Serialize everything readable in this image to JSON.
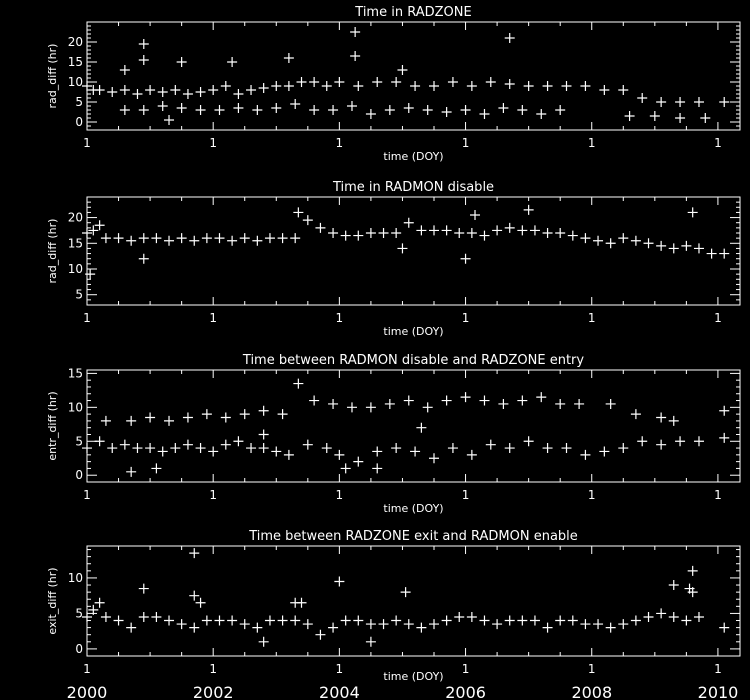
{
  "colors": {
    "background": "#000000",
    "foreground": "#ffffff"
  },
  "year_labels": [
    "2000",
    "2002",
    "2004",
    "2006",
    "2008",
    "2010"
  ],
  "chart_data": [
    {
      "type": "scatter",
      "title": "Time in RADZONE",
      "xlabel": "time (DOY)",
      "ylabel": "rad_diff (hr)",
      "xlim": [
        2000,
        2010.35
      ],
      "ylim": [
        -2,
        25
      ],
      "xticklabels": [
        "1",
        "1",
        "1",
        "1",
        "1",
        "1"
      ],
      "yticks": [
        0,
        5,
        10,
        15,
        20
      ],
      "marker": "plus",
      "points": [
        [
          2000.0,
          9
        ],
        [
          2000.1,
          8
        ],
        [
          2000.2,
          8
        ],
        [
          2000.4,
          7.5
        ],
        [
          2000.6,
          8
        ],
        [
          2000.8,
          7
        ],
        [
          2001.0,
          8
        ],
        [
          2001.2,
          7.5
        ],
        [
          2001.4,
          8
        ],
        [
          2001.6,
          7
        ],
        [
          2001.8,
          7.5
        ],
        [
          2002.0,
          8
        ],
        [
          2002.2,
          9
        ],
        [
          2002.4,
          7
        ],
        [
          2002.6,
          8
        ],
        [
          2002.8,
          8.5
        ],
        [
          2003.0,
          9
        ],
        [
          2003.2,
          9
        ],
        [
          2003.4,
          10
        ],
        [
          2003.6,
          10
        ],
        [
          2003.8,
          9
        ],
        [
          2004.0,
          10
        ],
        [
          2004.3,
          9
        ],
        [
          2004.6,
          10
        ],
        [
          2004.9,
          10
        ],
        [
          2005.2,
          9
        ],
        [
          2005.5,
          9
        ],
        [
          2005.8,
          10
        ],
        [
          2006.1,
          9
        ],
        [
          2006.4,
          10
        ],
        [
          2006.7,
          9.5
        ],
        [
          2007.0,
          9
        ],
        [
          2007.3,
          9
        ],
        [
          2007.6,
          9
        ],
        [
          2007.9,
          9
        ],
        [
          2008.2,
          8
        ],
        [
          2008.5,
          8
        ],
        [
          2008.8,
          6
        ],
        [
          2009.1,
          5
        ],
        [
          2009.4,
          5
        ],
        [
          2009.7,
          5
        ],
        [
          2010.1,
          5
        ],
        [
          2000.6,
          3
        ],
        [
          2000.9,
          3
        ],
        [
          2001.2,
          4
        ],
        [
          2001.5,
          3.5
        ],
        [
          2001.8,
          3
        ],
        [
          2002.1,
          3
        ],
        [
          2002.4,
          3.5
        ],
        [
          2002.7,
          3
        ],
        [
          2003.0,
          3.5
        ],
        [
          2003.3,
          4.5
        ],
        [
          2003.6,
          3
        ],
        [
          2003.9,
          3
        ],
        [
          2004.2,
          4
        ],
        [
          2004.5,
          2
        ],
        [
          2004.8,
          3
        ],
        [
          2005.1,
          3.5
        ],
        [
          2005.4,
          3
        ],
        [
          2005.7,
          2.5
        ],
        [
          2006.0,
          3
        ],
        [
          2006.3,
          2
        ],
        [
          2006.6,
          3.5
        ],
        [
          2006.9,
          3
        ],
        [
          2007.2,
          2
        ],
        [
          2007.5,
          3
        ],
        [
          2008.6,
          1.5
        ],
        [
          2009.0,
          1.5
        ],
        [
          2009.4,
          1
        ],
        [
          2009.8,
          1
        ],
        [
          2000.9,
          19.5
        ],
        [
          2000.9,
          15.5
        ],
        [
          2001.5,
          15
        ],
        [
          2002.3,
          15
        ],
        [
          2003.2,
          16
        ],
        [
          2004.25,
          22.5
        ],
        [
          2004.25,
          16.5
        ],
        [
          2006.7,
          21
        ],
        [
          2000.6,
          13
        ],
        [
          2005.0,
          13
        ],
        [
          2001.3,
          0.5
        ]
      ]
    },
    {
      "type": "scatter",
      "title": "Time in RADMON disable",
      "xlabel": "time (DOY)",
      "ylabel": "rad_diff (hr)",
      "xlim": [
        2000,
        2010.35
      ],
      "ylim": [
        3,
        24
      ],
      "xticklabels": [
        "1",
        "1",
        "1",
        "1",
        "1",
        "1"
      ],
      "yticks": [
        5,
        10,
        15,
        20
      ],
      "marker": "plus",
      "points": [
        [
          2000.0,
          17
        ],
        [
          2000.1,
          17.5
        ],
        [
          2000.3,
          16
        ],
        [
          2000.5,
          16
        ],
        [
          2000.7,
          15.5
        ],
        [
          2000.9,
          16
        ],
        [
          2001.1,
          16
        ],
        [
          2001.3,
          15.5
        ],
        [
          2001.5,
          16
        ],
        [
          2001.7,
          15.5
        ],
        [
          2001.9,
          16
        ],
        [
          2002.1,
          16
        ],
        [
          2002.3,
          15.5
        ],
        [
          2002.5,
          16
        ],
        [
          2002.7,
          15.5
        ],
        [
          2002.9,
          16
        ],
        [
          2003.1,
          16
        ],
        [
          2003.3,
          16
        ],
        [
          2003.35,
          21
        ],
        [
          2003.5,
          19.5
        ],
        [
          2003.7,
          18
        ],
        [
          2003.9,
          17
        ],
        [
          2004.1,
          16.5
        ],
        [
          2004.3,
          16.5
        ],
        [
          2004.5,
          17
        ],
        [
          2004.7,
          17
        ],
        [
          2004.9,
          17
        ],
        [
          2005.1,
          19
        ],
        [
          2005.3,
          17.5
        ],
        [
          2005.5,
          17.5
        ],
        [
          2005.7,
          17.5
        ],
        [
          2005.9,
          17
        ],
        [
          2006.1,
          17
        ],
        [
          2006.3,
          16.5
        ],
        [
          2006.5,
          17.5
        ],
        [
          2006.7,
          18
        ],
        [
          2006.9,
          17.5
        ],
        [
          2007.1,
          17.5
        ],
        [
          2007.3,
          17
        ],
        [
          2007.5,
          17
        ],
        [
          2007.7,
          16.5
        ],
        [
          2007.9,
          16
        ],
        [
          2008.1,
          15.5
        ],
        [
          2008.3,
          15
        ],
        [
          2008.5,
          16
        ],
        [
          2008.7,
          15.5
        ],
        [
          2008.9,
          15
        ],
        [
          2009.1,
          14.5
        ],
        [
          2009.3,
          14
        ],
        [
          2009.5,
          14.5
        ],
        [
          2009.7,
          14
        ],
        [
          2009.9,
          13
        ],
        [
          2010.1,
          13
        ],
        [
          2000.05,
          9
        ],
        [
          2000.9,
          12
        ],
        [
          2005.0,
          14
        ],
        [
          2006.0,
          12
        ],
        [
          2006.15,
          20.5
        ],
        [
          2007.0,
          21.5
        ],
        [
          2009.6,
          21
        ],
        [
          2000.2,
          18.5
        ]
      ]
    },
    {
      "type": "scatter",
      "title": "Time between RADMON disable and RADZONE entry",
      "xlabel": "time (DOY)",
      "ylabel": "entr_diff (hr)",
      "xlim": [
        2000,
        2010.35
      ],
      "ylim": [
        -1,
        15.5
      ],
      "xticklabels": [
        "1",
        "1",
        "1",
        "1",
        "1",
        "1"
      ],
      "yticks": [
        0,
        5,
        10,
        15
      ],
      "marker": "plus",
      "points": [
        [
          2000.0,
          4
        ],
        [
          2000.2,
          5
        ],
        [
          2000.4,
          4
        ],
        [
          2000.6,
          4.5
        ],
        [
          2000.8,
          4
        ],
        [
          2001.0,
          4
        ],
        [
          2001.2,
          3.5
        ],
        [
          2001.4,
          4
        ],
        [
          2001.6,
          4.5
        ],
        [
          2001.8,
          4
        ],
        [
          2002.0,
          3.5
        ],
        [
          2002.2,
          4.5
        ],
        [
          2002.4,
          5
        ],
        [
          2002.6,
          4
        ],
        [
          2002.8,
          4
        ],
        [
          2003.0,
          3.5
        ],
        [
          2003.2,
          3
        ],
        [
          2003.5,
          4.5
        ],
        [
          2003.8,
          4
        ],
        [
          2004.0,
          3
        ],
        [
          2004.3,
          2
        ],
        [
          2004.6,
          3.5
        ],
        [
          2004.9,
          4
        ],
        [
          2005.2,
          3.5
        ],
        [
          2005.5,
          2.5
        ],
        [
          2005.8,
          4
        ],
        [
          2006.1,
          3
        ],
        [
          2006.4,
          4.5
        ],
        [
          2006.7,
          4
        ],
        [
          2007.0,
          5
        ],
        [
          2007.3,
          4
        ],
        [
          2007.6,
          4
        ],
        [
          2007.9,
          3
        ],
        [
          2008.2,
          3.5
        ],
        [
          2008.5,
          4
        ],
        [
          2008.8,
          5
        ],
        [
          2009.1,
          4.5
        ],
        [
          2009.4,
          5
        ],
        [
          2009.7,
          5
        ],
        [
          2010.1,
          5.5
        ],
        [
          2000.3,
          8
        ],
        [
          2000.7,
          8
        ],
        [
          2001.0,
          8.5
        ],
        [
          2001.3,
          8
        ],
        [
          2001.6,
          8.5
        ],
        [
          2001.9,
          9
        ],
        [
          2002.2,
          8.5
        ],
        [
          2002.5,
          9
        ],
        [
          2002.8,
          9.5
        ],
        [
          2003.1,
          9
        ],
        [
          2003.35,
          13.5
        ],
        [
          2003.6,
          11
        ],
        [
          2003.9,
          10.5
        ],
        [
          2004.2,
          10
        ],
        [
          2004.5,
          10
        ],
        [
          2004.8,
          10.5
        ],
        [
          2005.1,
          11
        ],
        [
          2005.4,
          10
        ],
        [
          2005.7,
          11
        ],
        [
          2006.0,
          11.5
        ],
        [
          2006.3,
          11
        ],
        [
          2006.6,
          10.5
        ],
        [
          2006.9,
          11
        ],
        [
          2007.2,
          11.5
        ],
        [
          2007.5,
          10.5
        ],
        [
          2007.8,
          10.5
        ],
        [
          2008.7,
          9
        ],
        [
          2009.1,
          8.5
        ],
        [
          2009.3,
          8
        ],
        [
          2010.1,
          9.5
        ],
        [
          2000.7,
          0.5
        ],
        [
          2001.1,
          1
        ],
        [
          2004.1,
          1
        ],
        [
          2004.6,
          1
        ],
        [
          2005.3,
          7
        ],
        [
          2008.3,
          10.5
        ],
        [
          2002.8,
          6
        ]
      ]
    },
    {
      "type": "scatter",
      "title": "Time between RADZONE exit and RADMON enable",
      "xlabel": "time (DOY)",
      "ylabel": "exit_diff (hr)",
      "xlim": [
        2000,
        2010.35
      ],
      "ylim": [
        -1,
        14.5
      ],
      "xticklabels": [
        "1",
        "1",
        "1",
        "1",
        "1",
        "1"
      ],
      "yticks": [
        0,
        5,
        10
      ],
      "marker": "plus",
      "points": [
        [
          2000.0,
          4.5
        ],
        [
          2000.1,
          5.5
        ],
        [
          2000.3,
          4.5
        ],
        [
          2000.5,
          4
        ],
        [
          2000.7,
          3
        ],
        [
          2000.9,
          4.5
        ],
        [
          2001.1,
          4.5
        ],
        [
          2001.3,
          4
        ],
        [
          2001.5,
          3.5
        ],
        [
          2001.7,
          3
        ],
        [
          2001.9,
          4
        ],
        [
          2002.1,
          4
        ],
        [
          2002.3,
          4
        ],
        [
          2002.5,
          3.5
        ],
        [
          2002.7,
          3
        ],
        [
          2002.9,
          4
        ],
        [
          2003.1,
          4
        ],
        [
          2003.3,
          4
        ],
        [
          2003.5,
          3.5
        ],
        [
          2003.7,
          2
        ],
        [
          2003.9,
          3
        ],
        [
          2004.1,
          4
        ],
        [
          2004.3,
          4
        ],
        [
          2004.5,
          3.5
        ],
        [
          2004.7,
          3.5
        ],
        [
          2004.9,
          4
        ],
        [
          2005.1,
          3.5
        ],
        [
          2005.3,
          3
        ],
        [
          2005.5,
          3.5
        ],
        [
          2005.7,
          4
        ],
        [
          2005.9,
          4.5
        ],
        [
          2006.1,
          4.5
        ],
        [
          2006.3,
          4
        ],
        [
          2006.5,
          3.5
        ],
        [
          2006.7,
          4
        ],
        [
          2006.9,
          4
        ],
        [
          2007.1,
          4
        ],
        [
          2007.3,
          3
        ],
        [
          2007.5,
          4
        ],
        [
          2007.7,
          4
        ],
        [
          2007.9,
          3.5
        ],
        [
          2008.1,
          3.5
        ],
        [
          2008.3,
          3
        ],
        [
          2008.5,
          3.5
        ],
        [
          2008.7,
          4
        ],
        [
          2008.9,
          4.5
        ],
        [
          2009.1,
          5
        ],
        [
          2009.3,
          4.5
        ],
        [
          2009.5,
          4
        ],
        [
          2009.7,
          4.5
        ],
        [
          2010.1,
          3
        ],
        [
          2001.7,
          13.5
        ],
        [
          2001.7,
          7.5
        ],
        [
          2001.8,
          6.5
        ],
        [
          2000.2,
          6.5
        ],
        [
          2000.9,
          8.5
        ],
        [
          2003.4,
          6.5
        ],
        [
          2003.3,
          6.5
        ],
        [
          2004.0,
          9.5
        ],
        [
          2004.5,
          1
        ],
        [
          2005.05,
          8
        ],
        [
          2002.8,
          1
        ],
        [
          2009.3,
          9
        ],
        [
          2009.6,
          11
        ],
        [
          2009.55,
          8.5
        ],
        [
          2009.6,
          8
        ]
      ]
    }
  ]
}
